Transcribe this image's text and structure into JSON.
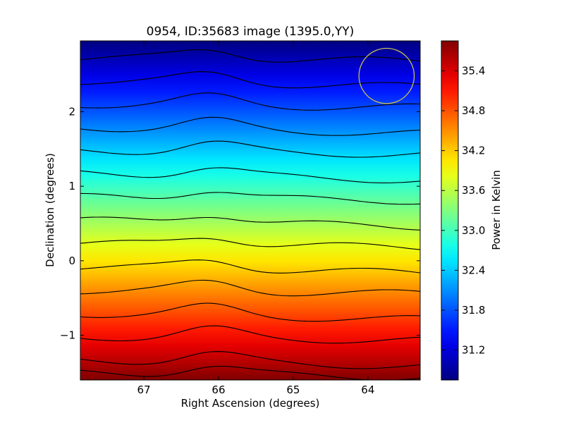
{
  "chart_data": {
    "type": "heatmap",
    "title": "0954, ID:35683 image (1395.0,YY)",
    "xlabel": "Right Ascension (degrees)",
    "ylabel": "Declination (degrees)",
    "xlim": [
      67.85,
      63.3
    ],
    "ylim": [
      -1.6,
      2.95
    ],
    "x_inverted": true,
    "x_ticks": [
      67,
      66,
      65,
      64
    ],
    "x_tick_labels": [
      "67",
      "66",
      "65",
      "64"
    ],
    "y_ticks": [
      -1,
      0,
      1,
      2
    ],
    "y_tick_labels": [
      "−1",
      "0",
      "1",
      "2"
    ],
    "colormap": "jet",
    "colorbar": {
      "label": "Power in Kelvin",
      "range": [
        30.75,
        35.85
      ],
      "ticks": [
        31.2,
        31.8,
        32.4,
        33.0,
        33.6,
        34.2,
        34.8,
        35.4
      ],
      "tick_labels": [
        "31.2",
        "31.8",
        "32.4",
        "33.0",
        "33.6",
        "34.2",
        "34.8",
        "35.4"
      ]
    },
    "field": {
      "description": "power decreases with declination; wavy contours",
      "value_at_dec_min": 35.85,
      "value_at_dec_max": 30.75
    },
    "contour_levels": [
      31.0,
      31.35,
      31.7,
      32.05,
      32.4,
      32.75,
      33.1,
      33.45,
      33.8,
      34.15,
      34.5,
      34.85,
      35.2,
      35.55,
      35.75
    ],
    "contour_color": "#000000",
    "beam_circle": {
      "ra": 63.75,
      "dec": 2.48,
      "radius_deg": 0.37,
      "color": "#c8c050"
    },
    "grid": false
  }
}
